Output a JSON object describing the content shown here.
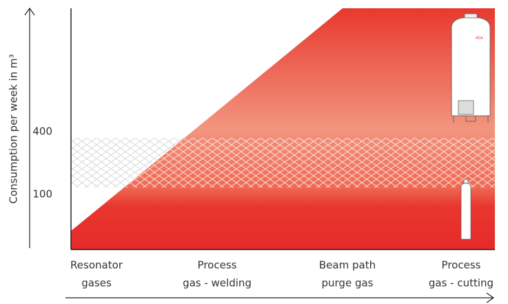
{
  "y_axis": {
    "label": "Consumption per week in m³",
    "ticks": [
      "400",
      "100"
    ]
  },
  "categories": [
    [
      "Resonator",
      "gases"
    ],
    [
      "Process",
      "gas - welding"
    ],
    [
      "Beam path",
      "purge gas"
    ],
    [
      "Process",
      "gas - cutting"
    ]
  ],
  "cylinder_logo": "AGA"
}
